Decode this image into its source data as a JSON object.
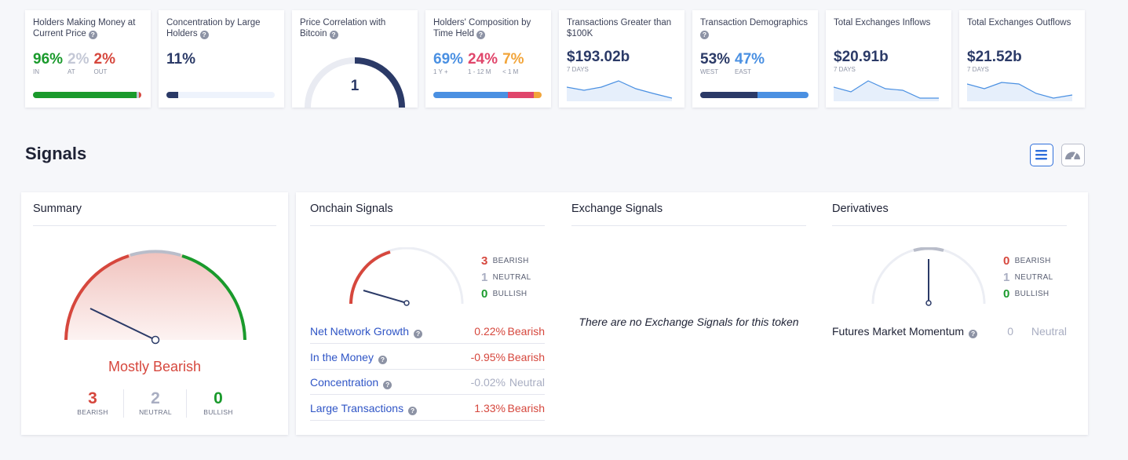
{
  "metrics": {
    "m1": {
      "title": "Holders Making Money at Current Price",
      "in_value": "96%",
      "at_value": "2%",
      "out_value": "2%",
      "in_label": "IN",
      "at_label": "AT",
      "out_label": "OUT",
      "bar_in": 96,
      "bar_at": 2,
      "bar_out": 2
    },
    "m2": {
      "title": "Concentration by Large Holders",
      "value": "11%",
      "bar_fill": 11
    },
    "m3": {
      "title": "Price Correlation with Bitcoin",
      "value": "1",
      "gauge_fill": 1.0
    },
    "m4": {
      "title": "Holders' Composition by Time Held",
      "v1": "69%",
      "v2": "24%",
      "v3": "7%",
      "l1": "1 Y +",
      "l2": "1 - 12 M",
      "l3": "< 1 M"
    },
    "m5": {
      "title": "Transactions Greater than $100K",
      "value": "$193.02b",
      "sub": "7 DAYS"
    },
    "m6": {
      "title": "Transaction Demographics",
      "v1": "53%",
      "v2": "47%",
      "l1": "WEST",
      "l2": "EAST"
    },
    "m7": {
      "title": "Total Exchanges Inflows",
      "value": "$20.91b",
      "sub": "7 DAYS"
    },
    "m8": {
      "title": "Total Exchanges Outflows",
      "value": "$21.52b",
      "sub": "7 DAYS"
    }
  },
  "signals": {
    "heading": "Signals",
    "summary": {
      "title": "Summary",
      "verdict": "Mostly Bearish",
      "bearish_count": "3",
      "neutral_count": "2",
      "bullish_count": "0",
      "bearish_label": "BEARISH",
      "neutral_label": "NEUTRAL",
      "bullish_label": "BULLISH"
    },
    "onchain": {
      "title": "Onchain Signals",
      "bearish_count": "3",
      "neutral_count": "1",
      "bullish_count": "0",
      "bearish_label": "BEARISH",
      "neutral_label": "NEUTRAL",
      "bullish_label": "BULLISH",
      "rows": [
        {
          "name": "Net Network Growth",
          "pct": "0.22%",
          "status": "Bearish"
        },
        {
          "name": "In the Money",
          "pct": "-0.95%",
          "status": "Bearish"
        },
        {
          "name": "Concentration",
          "pct": "-0.02%",
          "status": "Neutral"
        },
        {
          "name": "Large Transactions",
          "pct": "1.33%",
          "status": "Bearish"
        }
      ]
    },
    "exchange": {
      "title": "Exchange Signals",
      "empty": "There are no Exchange Signals for this token"
    },
    "derivatives": {
      "title": "Derivatives",
      "bearish_count": "0",
      "neutral_count": "1",
      "bullish_count": "0",
      "bearish_label": "BEARISH",
      "neutral_label": "NEUTRAL",
      "bullish_label": "BULLISH",
      "row_name": "Futures Market Momentum",
      "row_value": "0",
      "row_status": "Neutral"
    }
  },
  "colors": {
    "green": "#1a9a2c",
    "red": "#d6473d",
    "gray": "#c4c8d6",
    "navy": "#2b3a67",
    "blue": "#4a90e2",
    "pink": "#e0466b",
    "orange": "#f2a53a"
  },
  "icons": {
    "help": "question-circle-icon",
    "list_view": "list-icon",
    "gauge_view": "speedometer-icon"
  }
}
